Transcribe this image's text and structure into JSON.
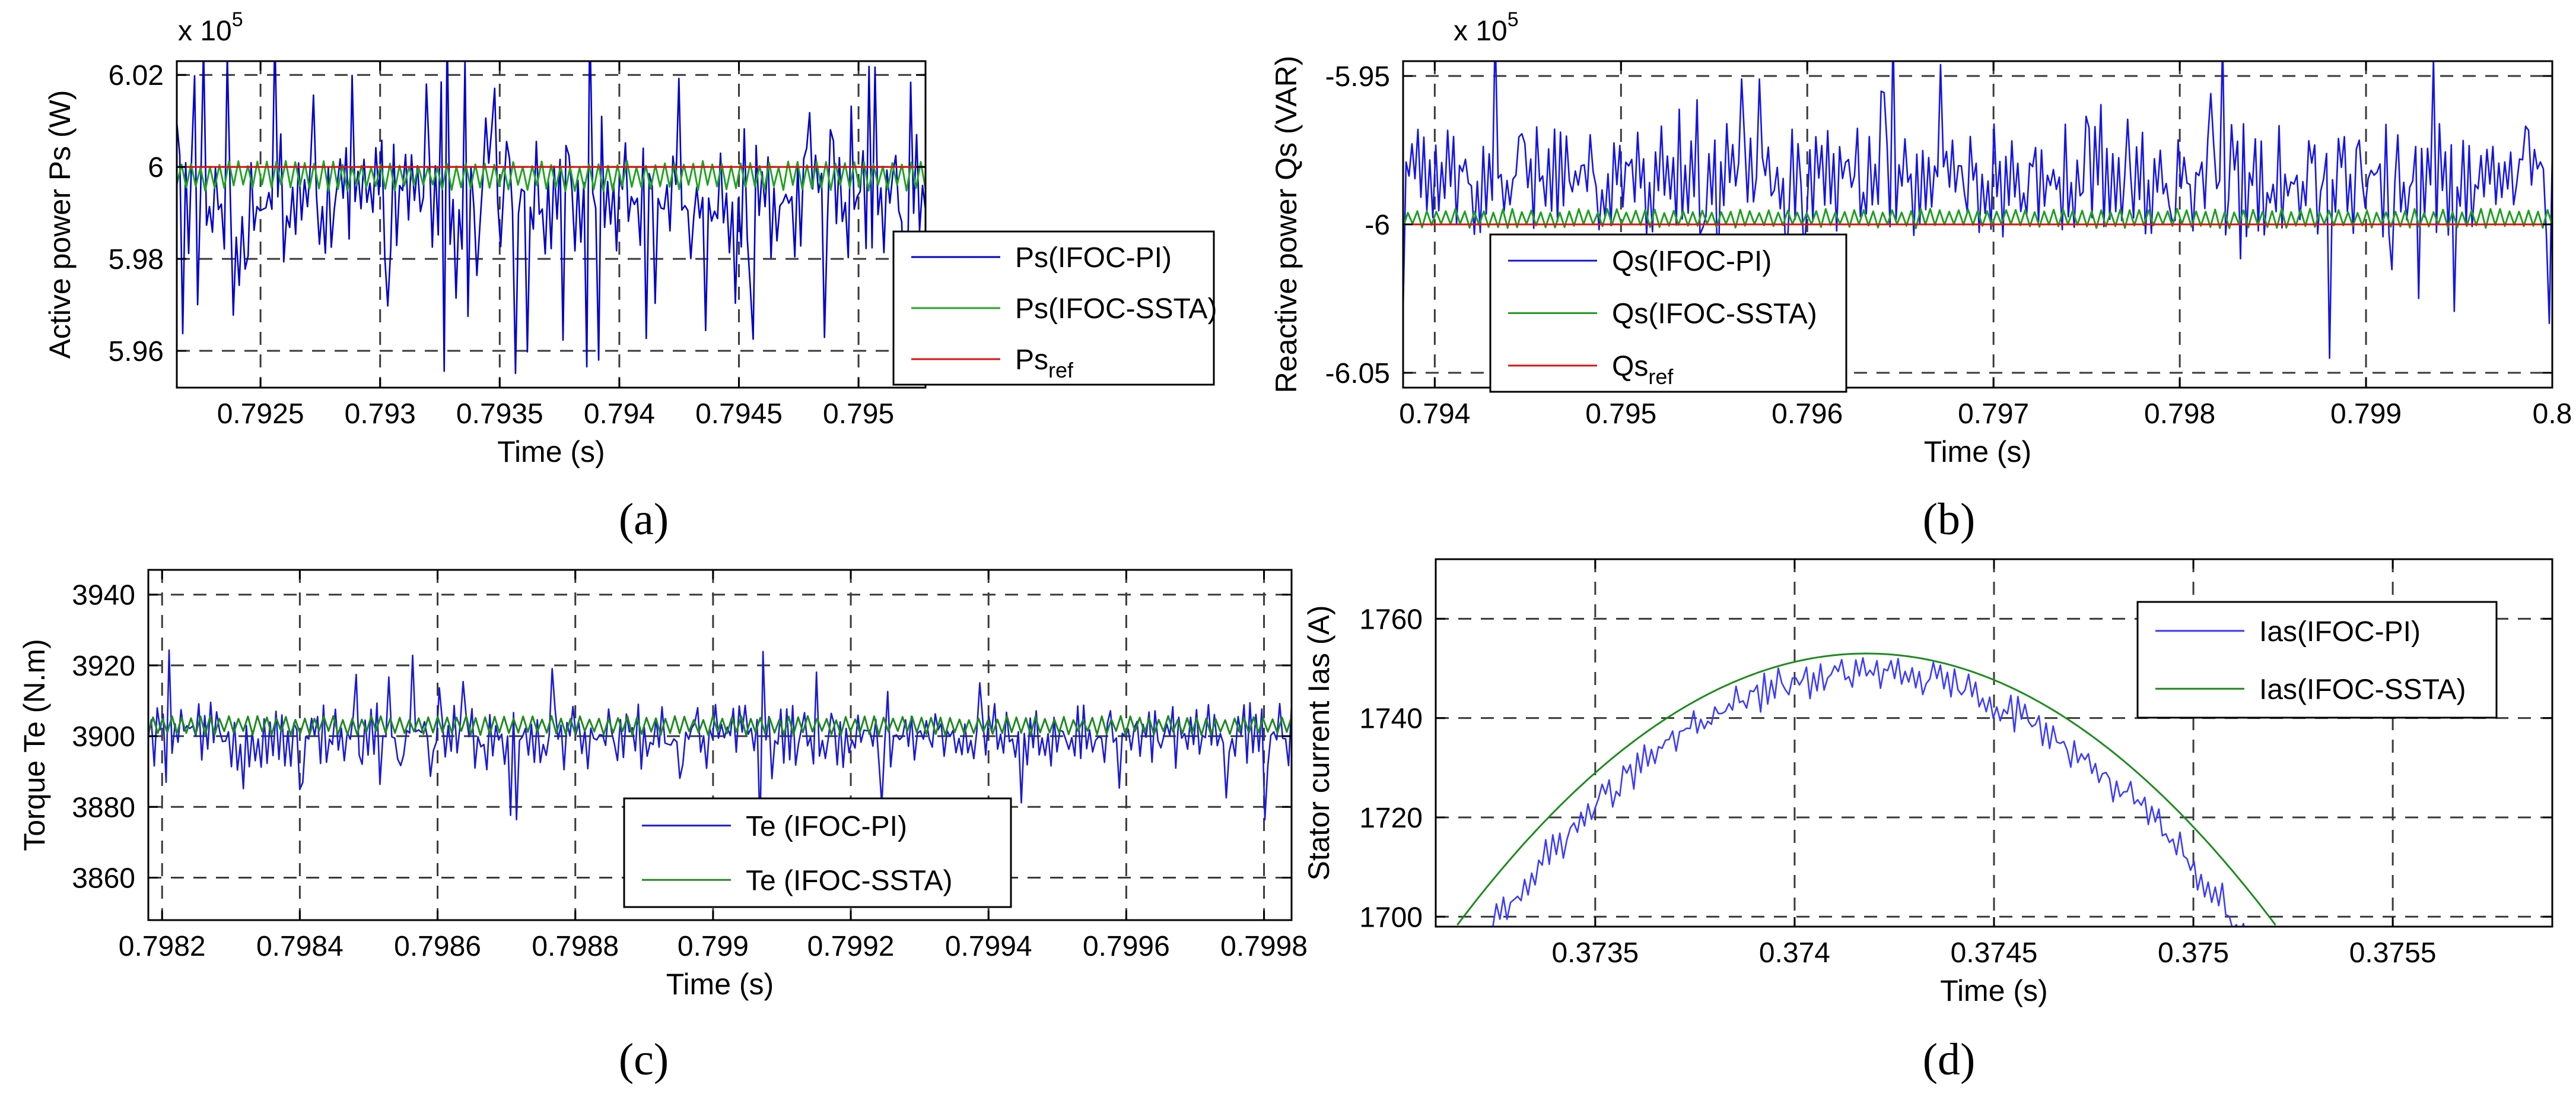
{
  "chart_data": [
    {
      "type": "line",
      "panel": "a",
      "caption": "(a)",
      "xlabel": "Time (s)",
      "ylabel": "Active power Ps (W)",
      "multiplier": "x 10",
      "multiplier_exp": "5",
      "xlim": [
        0.79215,
        0.79528
      ],
      "ylim": [
        5.952,
        6.023
      ],
      "xticks": [
        0.7925,
        0.793,
        0.7935,
        0.794,
        0.7945,
        0.795
      ],
      "xtick_labels": [
        "0.7925",
        "0.793",
        "0.7935",
        "0.794",
        "0.7945",
        "0.795"
      ],
      "yticks": [
        5.96,
        5.98,
        6.0,
        6.02
      ],
      "ytick_labels": [
        "5.96",
        "5.98",
        "6",
        "6.02"
      ],
      "legend_position": "bottom-right",
      "series": [
        {
          "name": "Ps(IFOC-PI)",
          "label_main": "Ps(IFOC-PI)",
          "label_sub": "",
          "color": "#0000cc",
          "center": 5.993,
          "noise": 0.008,
          "spikes": 0.25
        },
        {
          "name": "Ps(IFOC-SSTA)",
          "label_main": "Ps(IFOC-SSTA)",
          "label_sub": "",
          "color": "#21a321",
          "center": 5.998,
          "noise": 0.003,
          "spikes": 0
        },
        {
          "name": "Ps_ref",
          "label_main": "Ps",
          "label_sub": "ref",
          "color": "#e01010",
          "center": 6.0,
          "noise": 0,
          "spikes": 0
        }
      ]
    },
    {
      "type": "line",
      "panel": "b",
      "caption": "(b)",
      "xlabel": "Time (s)",
      "ylabel": "Reactive power Qs (VAR)",
      "multiplier": "x 10",
      "multiplier_exp": "5",
      "xlim": [
        0.79383,
        0.8
      ],
      "ylim": [
        -6.055,
        -5.945
      ],
      "xticks": [
        0.794,
        0.795,
        0.796,
        0.797,
        0.798,
        0.799,
        0.8
      ],
      "xtick_labels": [
        "0.794",
        "0.795",
        "0.796",
        "0.797",
        "0.798",
        "0.799",
        "0.8"
      ],
      "yticks": [
        -6.05,
        -6.0,
        -5.95
      ],
      "ytick_labels": [
        "-6.05",
        "-6",
        "-5.95"
      ],
      "legend_position": "bottom-left",
      "series": [
        {
          "name": "Qs(IFOC-PI)",
          "label_main": "Qs(IFOC-PI)",
          "label_sub": "",
          "color": "#1515e6",
          "center": -5.985,
          "noise": 0.012,
          "spikes": 0.12
        },
        {
          "name": "Qs(IFOC-SSTA)",
          "label_main": "Qs(IFOC-SSTA)",
          "label_sub": "",
          "color": "#1f9e1f",
          "center": -5.998,
          "noise": 0.003,
          "spikes": 0
        },
        {
          "name": "Qs_ref",
          "label_main": "Qs",
          "label_sub": "ref",
          "color": "#e01010",
          "center": -6.0,
          "noise": 0,
          "spikes": 0
        }
      ]
    },
    {
      "type": "line",
      "panel": "c",
      "caption": "(c)",
      "xlabel": "Time (s)",
      "ylabel": "Torque Te (N.m)",
      "xlim": [
        0.79818,
        0.79984
      ],
      "ylim": [
        3848,
        3947
      ],
      "xticks": [
        0.7982,
        0.7984,
        0.7986,
        0.7988,
        0.799,
        0.7992,
        0.7994,
        0.7996,
        0.7998
      ],
      "xtick_labels": [
        "0.7982",
        "0.7984",
        "0.7986",
        "0.7988",
        "0.799",
        "0.7992",
        "0.7994",
        "0.7996",
        "0.7998"
      ],
      "yticks": [
        3860,
        3880,
        3900,
        3920,
        3940
      ],
      "ytick_labels": [
        "3860",
        "3880",
        "3900",
        "3920",
        "3940"
      ],
      "legend_position": "bottom-center",
      "series": [
        {
          "name": "Te (IFOC-PI)",
          "label_main": "Te (IFOC-PI)",
          "label_sub": "",
          "color": "#1a1ad6",
          "center": 3900,
          "noise": 6,
          "spikes": 0.12
        },
        {
          "name": "Te (IFOC-SSTA)",
          "label_main": "Te (IFOC-SSTA)",
          "label_sub": "",
          "color": "#1f8a1f",
          "center": 3903,
          "noise": 2.5,
          "spikes": 0
        }
      ]
    },
    {
      "type": "line",
      "panel": "d",
      "caption": "(d)",
      "xlabel": "Time (s)",
      "ylabel": "Stator current Ias (A)",
      "xlim": [
        0.3731,
        0.3759
      ],
      "ylim": [
        1698,
        1772
      ],
      "xticks": [
        0.3735,
        0.374,
        0.3745,
        0.375,
        0.3755
      ],
      "xtick_labels": [
        "0.3735",
        "0.374",
        "0.3745",
        "0.375",
        "0.3755"
      ],
      "yticks": [
        1700,
        1720,
        1740,
        1760
      ],
      "ytick_labels": [
        "1700",
        "1720",
        "1740",
        "1760"
      ],
      "legend_position": "top-right",
      "series": [
        {
          "name": "Ias(IFOC-PI)",
          "label_main": "Ias(IFOC-PI)",
          "label_sub": "",
          "color": "#3b3bff",
          "peak": 1749,
          "peak_x": 0.37418,
          "width": 0.00072,
          "noise": 2.5
        },
        {
          "name": "Ias(IFOC-SSTA)",
          "label_main": "Ias(IFOC-SSTA)",
          "label_sub": "",
          "color": "#1c8c1c",
          "peak": 1753,
          "peak_x": 0.37418,
          "width": 0.00076,
          "noise": 0
        }
      ]
    }
  ]
}
